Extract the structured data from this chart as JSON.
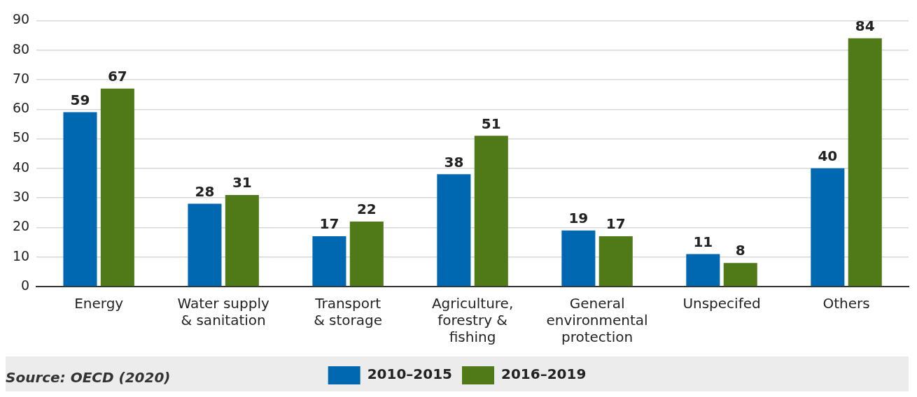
{
  "chart_data": {
    "type": "bar",
    "categories": [
      "Energy",
      "Water supply\n& sanitation",
      "Transport\n& storage",
      "Agriculture,\nforestry &\nfishing",
      "General\nenvironmental\nprotection",
      "Unspecifed",
      "Others"
    ],
    "series": [
      {
        "name": "2010–2015",
        "color": "#0067b1",
        "values": [
          59,
          28,
          17,
          38,
          19,
          11,
          40
        ]
      },
      {
        "name": "2016–2019",
        "color": "#507a17",
        "values": [
          67,
          31,
          22,
          51,
          17,
          8,
          84
        ]
      }
    ],
    "ylim": [
      0,
      90
    ],
    "yticks": [
      0,
      10,
      20,
      30,
      40,
      50,
      60,
      70,
      80,
      90
    ],
    "grid": "y",
    "legend": "bottom",
    "data_labels": true,
    "annotations": [
      "Source: OECD (2020)"
    ]
  }
}
